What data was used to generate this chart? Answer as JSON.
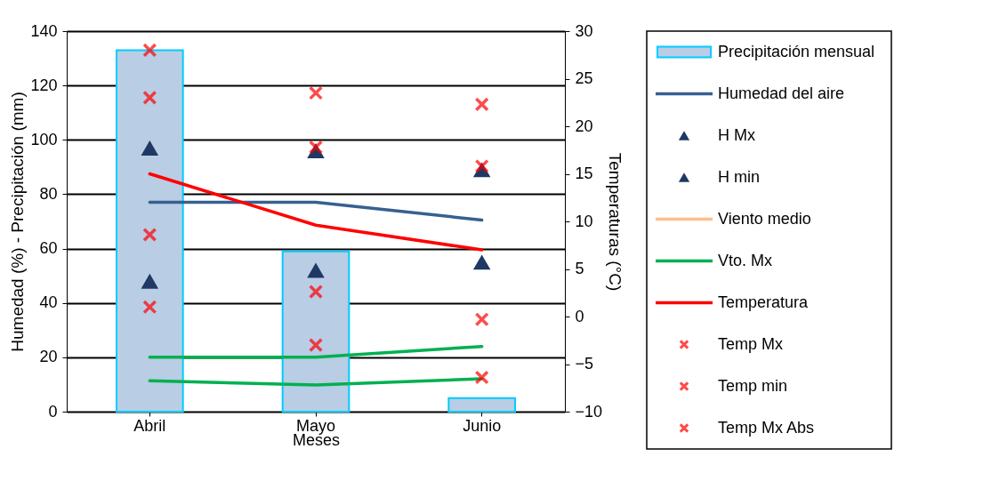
{
  "chart_data": {
    "type": "line",
    "categories": [
      "Abril",
      "Mayo",
      "Junio"
    ],
    "xlabel": "Meses",
    "ylabel": "Humedad (%) - Precipitación (mm)",
    "y2label": "Temperaturas (°C)",
    "ylim": [
      0,
      140
    ],
    "yticks": [
      0,
      20,
      40,
      60,
      80,
      100,
      120,
      140
    ],
    "y2lim": [
      -10,
      30
    ],
    "y2ticks": [
      -10,
      -5,
      0,
      5,
      10,
      15,
      20,
      25,
      30
    ],
    "grid": "y",
    "legend": "right",
    "marker": "none",
    "series": [
      {
        "name": "Precipitación mensual",
        "type": "bar",
        "color": "#b9cde5",
        "values": [
          133,
          59,
          5
        ]
      },
      {
        "name": "Humedad del aire",
        "color": "#376092",
        "values": [
          77,
          77,
          70.5
        ]
      },
      {
        "name": "H Mx",
        "type": "scatter",
        "marker": "triangle",
        "color": "#1f3864",
        "values": [
          97,
          96,
          89
        ]
      },
      {
        "name": "H min",
        "type": "scatter",
        "marker": "triangle",
        "color": "#1f3864",
        "values": [
          48,
          52,
          55
        ]
      },
      {
        "name": "Viento medio",
        "color": "#fac090",
        "values": [
          null,
          null,
          null
        ]
      },
      {
        "name": "Vto. Mx",
        "color": "#00b050",
        "values": [
          20,
          20,
          24
        ]
      },
      {
        "name": "Temperatura",
        "color": "#ff0000",
        "axis": "y2",
        "values": [
          15,
          9.6,
          7
        ]
      },
      {
        "name": "Temp Mx",
        "type": "scatter",
        "marker": "cross",
        "color": "#ff0000",
        "axis": "y2",
        "values": [
          23,
          17.8,
          15.8
        ]
      },
      {
        "name": "Temp min",
        "type": "scatter",
        "marker": "cross",
        "color": "#ff0000",
        "axis": "y2",
        "values": [
          8.6,
          2.6,
          -0.3
        ]
      },
      {
        "name": "Temp Mx Abs",
        "type": "scatter",
        "marker": "cross",
        "color": "#ff0000",
        "axis": "y2",
        "values": [
          28,
          23.5,
          22.3
        ]
      },
      {
        "type": "scatter",
        "marker": "cross",
        "color": "#ff0000",
        "axis": "y2",
        "values": [
          1,
          -3,
          -6.4
        ]
      },
      {
        "color": "#00b050",
        "values": [
          11.4,
          9.8,
          12.1
        ]
      }
    ]
  }
}
